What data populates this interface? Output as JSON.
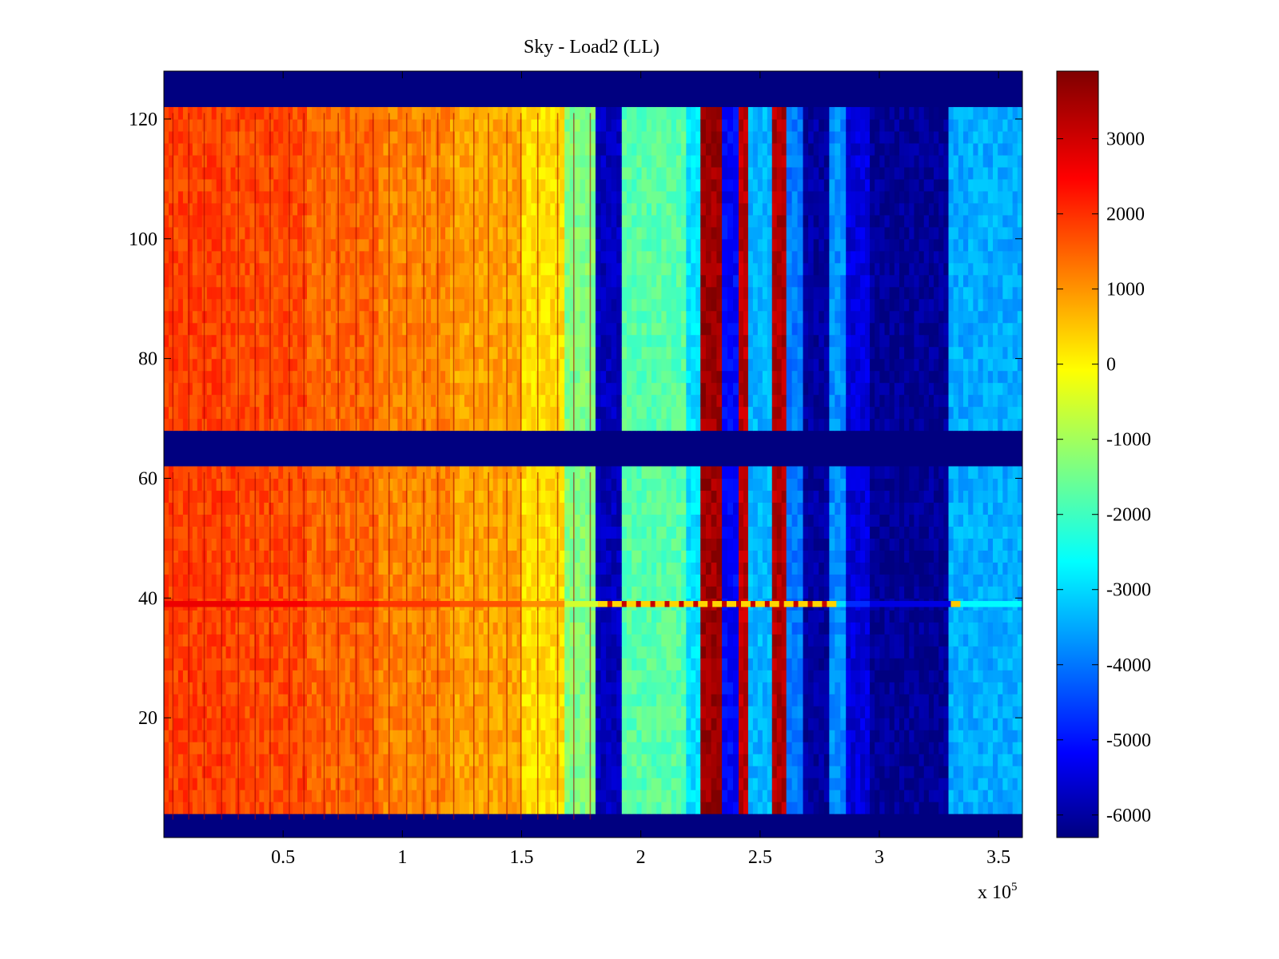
{
  "chart_data": {
    "type": "heatmap",
    "title": "Sky - Load2 (LL)",
    "xlabel": "",
    "ylabel": "",
    "x_multiplier_label": "x 10",
    "x_multiplier_exponent": "5",
    "xlim": [
      0,
      3.6
    ],
    "ylim": [
      0,
      128
    ],
    "x_ticks": [
      0.5,
      1,
      1.5,
      2,
      2.5,
      3,
      3.5
    ],
    "x_tick_labels": [
      "0.5",
      "1",
      "1.5",
      "2",
      "2.5",
      "3",
      "3.5"
    ],
    "y_ticks": [
      20,
      40,
      60,
      80,
      100,
      120
    ],
    "y_tick_labels": [
      "20",
      "40",
      "60",
      "80",
      "100",
      "120"
    ],
    "colorbar": {
      "colormap": "jet",
      "clim": [
        -6300,
        3900
      ],
      "ticks": [
        3000,
        2000,
        1000,
        0,
        -1000,
        -2000,
        -3000,
        -4000,
        -5000,
        -6000
      ],
      "tick_labels": [
        "3000",
        "2000",
        "1000",
        "0",
        "-1000",
        "-2000",
        "-3000",
        "-4000",
        "-5000",
        "-6000"
      ]
    },
    "y_masked_rows": [
      [
        0,
        3
      ],
      [
        61,
        68
      ],
      [
        121,
        128
      ]
    ],
    "y_anomaly_row": 39,
    "x_segments": [
      {
        "x": [
          0.0,
          0.3
        ],
        "value": 2000
      },
      {
        "x": [
          0.3,
          0.6
        ],
        "value": 1900
      },
      {
        "x": [
          0.6,
          0.9
        ],
        "value": 1600
      },
      {
        "x": [
          0.9,
          1.2
        ],
        "value": 1300
      },
      {
        "x": [
          1.2,
          1.5
        ],
        "value": 1000
      },
      {
        "x": [
          1.5,
          1.68
        ],
        "value": 400
      },
      {
        "x": [
          1.68,
          1.81
        ],
        "value": -1200
      },
      {
        "x": [
          1.81,
          1.92
        ],
        "value": -5700
      },
      {
        "x": [
          1.92,
          2.19
        ],
        "value": -1600
      },
      {
        "x": [
          2.19,
          2.25
        ],
        "value": -2800
      },
      {
        "x": [
          2.25,
          2.34
        ],
        "value": 3600
      },
      {
        "x": [
          2.34,
          2.41
        ],
        "value": -5000
      },
      {
        "x": [
          2.41,
          2.45
        ],
        "value": 3300
      },
      {
        "x": [
          2.45,
          2.55
        ],
        "value": -3200
      },
      {
        "x": [
          2.55,
          2.61
        ],
        "value": 3400
      },
      {
        "x": [
          2.61,
          2.68
        ],
        "value": -3800
      },
      {
        "x": [
          2.68,
          2.79
        ],
        "value": -6000
      },
      {
        "x": [
          2.79,
          2.86
        ],
        "value": -3600
      },
      {
        "x": [
          2.86,
          2.96
        ],
        "value": -5400
      },
      {
        "x": [
          2.96,
          3.29
        ],
        "value": -6100
      },
      {
        "x": [
          3.29,
          3.6
        ],
        "value": -3300
      }
    ],
    "grid": false,
    "legend": "none"
  }
}
